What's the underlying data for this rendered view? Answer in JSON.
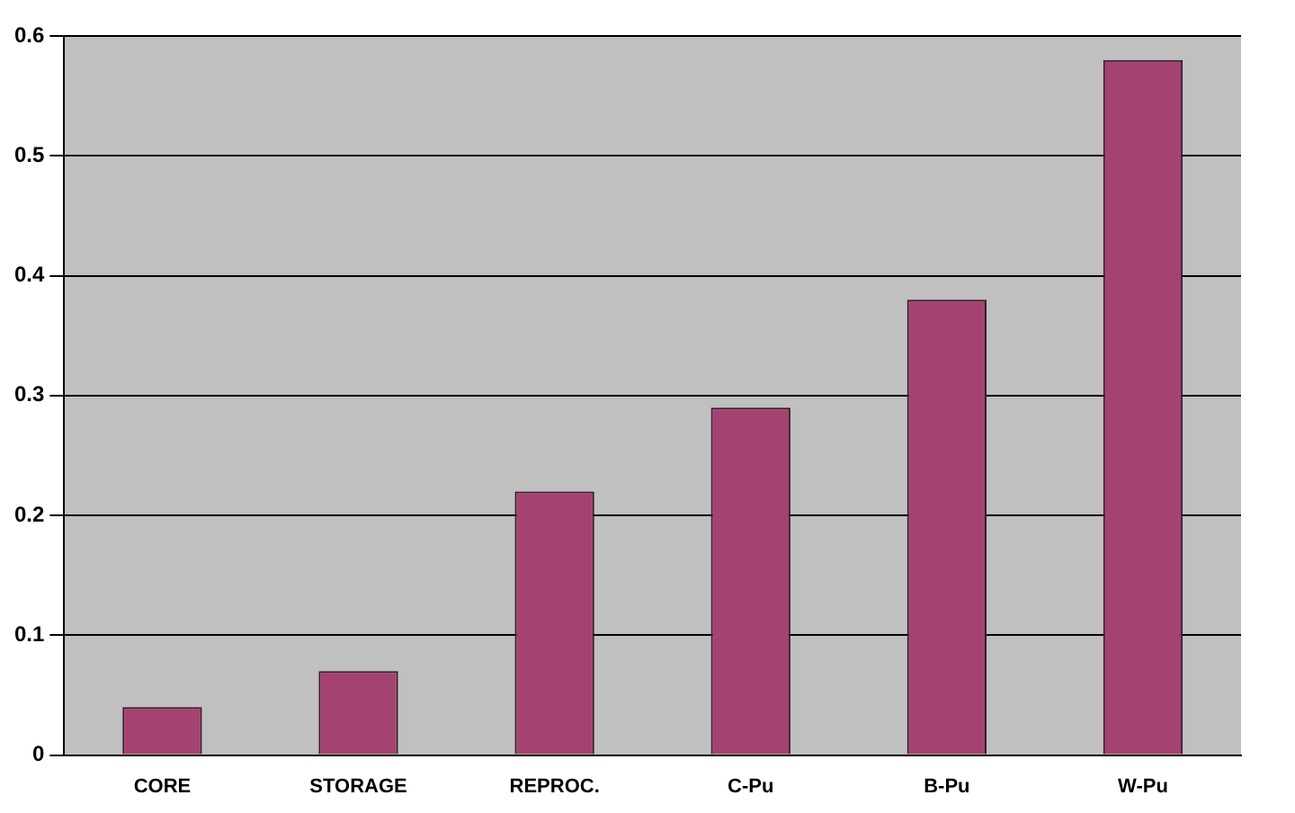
{
  "chart_data": {
    "type": "bar",
    "categories": [
      "CORE",
      "STORAGE",
      "REPROC.",
      "C-Pu",
      "B-Pu",
      "W-Pu"
    ],
    "values": [
      0.04,
      0.07,
      0.22,
      0.29,
      0.38,
      0.58
    ],
    "color": "#a44372",
    "ylim": [
      0,
      0.6
    ],
    "yticks": [
      0,
      0.1,
      0.2,
      0.3,
      0.4,
      0.5,
      0.6
    ],
    "grid": "y",
    "legend": false
  }
}
